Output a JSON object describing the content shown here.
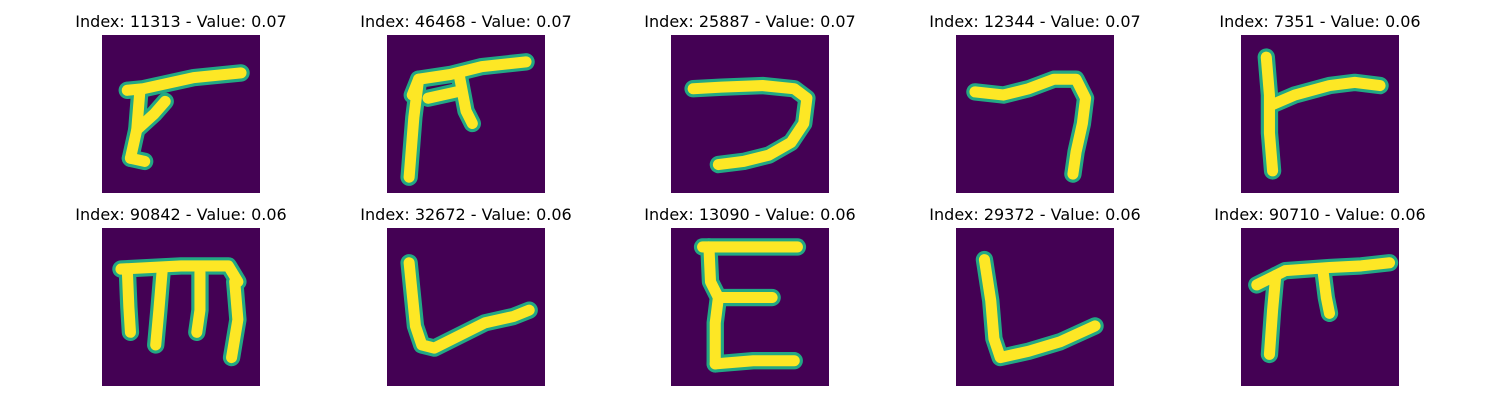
{
  "figure": {
    "background_color": "#440154",
    "stroke_core_color": "#fde725",
    "stroke_edge_color": "#22a884",
    "colormap": "viridis"
  },
  "chart_data": {
    "type": "image-grid",
    "grid": {
      "rows": 2,
      "cols": 5
    },
    "axes_visible": false,
    "panels": [
      {
        "index": 11313,
        "value": 0.07,
        "title": "Index: 11313 - Value: 0.07",
        "glyph": "flag-stroke-left-leaning"
      },
      {
        "index": 46468,
        "value": 0.07,
        "title": "Index: 46468 - Value: 0.07",
        "glyph": "pi-like-stroke"
      },
      {
        "index": 25887,
        "value": 0.07,
        "title": "Index: 25887 - Value: 0.07",
        "glyph": "reversed-c-stroke"
      },
      {
        "index": 12344,
        "value": 0.07,
        "title": "Index: 12344 - Value: 0.07",
        "glyph": "seven-like-stroke"
      },
      {
        "index": 7351,
        "value": 0.06,
        "title": "Index: 7351 - Value: 0.06",
        "glyph": "k-like-stroke"
      },
      {
        "index": 90842,
        "value": 0.06,
        "title": "Index: 90842 - Value: 0.06",
        "glyph": "m-like-stroke"
      },
      {
        "index": 32672,
        "value": 0.06,
        "title": "Index: 32672 - Value: 0.06",
        "glyph": "l-curve-stroke"
      },
      {
        "index": 13090,
        "value": 0.06,
        "title": "Index: 13090 - Value: 0.06",
        "glyph": "e-like-stroke"
      },
      {
        "index": 29372,
        "value": 0.06,
        "title": "Index: 29372 - Value: 0.06",
        "glyph": "l-like-stroke"
      },
      {
        "index": 90710,
        "value": 0.06,
        "title": "Index: 90710 - Value: 0.06",
        "glyph": "pi-like-stroke-small"
      }
    ]
  }
}
